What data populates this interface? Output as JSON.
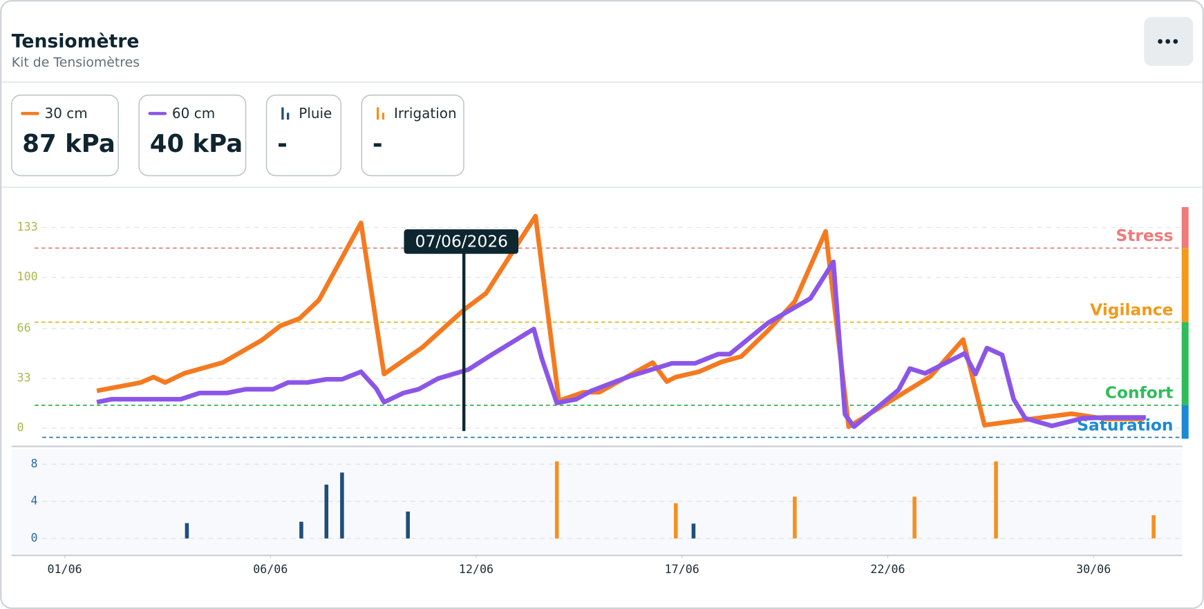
{
  "header": {
    "title": "Tensiomètre",
    "subtitle": "Kit de Tensiomètres"
  },
  "readings": [
    "87 kPa",
    "40 kPa",
    "-",
    "-"
  ],
  "chart_data": [
    {
      "type": "line",
      "xlim": [
        -1.29,
        27.16
      ],
      "ylim": [
        -7,
        146.6
      ],
      "yticks": [
        0,
        33,
        66,
        100,
        133
      ],
      "grid": true,
      "cursor": {
        "x": 9.7,
        "label": "07/06/2026"
      },
      "zones": [
        {
          "name": "Stress",
          "value": 119.4,
          "color": "#f07a7a"
        },
        {
          "name": "Vigilance",
          "value": 70.3,
          "color": "#f29a1a"
        },
        {
          "name": "Confort",
          "value": 15.2,
          "color": "#2ebd5a"
        },
        {
          "name": "Saturation",
          "value": -6.1,
          "color": "#1a8ad4"
        }
      ],
      "zone_line_colors": [
        "#d97a7a",
        "#d4b800",
        "#22aa44",
        "#1a6fa0"
      ],
      "series": [
        {
          "name": "30 cm",
          "color": "#f47a20",
          "x": [
            0.78,
            1.85,
            2.16,
            2.44,
            2.91,
            3.84,
            4.78,
            5.24,
            5.71,
            6.18,
            7.2,
            7.76,
            8.69,
            9.72,
            10.24,
            11.44,
            12.01,
            12.61,
            12.99,
            14.29,
            14.63,
            14.85,
            15.41,
            15.97,
            16.44,
            17.09,
            17.74,
            18.49,
            19.05,
            19.51,
            20.07,
            21.04,
            21.83,
            22.35,
            23.06,
            24.46,
            25.3,
            26.23
          ],
          "values": [
            24.8,
            30.3,
            33.9,
            30.3,
            36.4,
            43.5,
            58.2,
            67.8,
            72.8,
            85.0,
            136.1,
            35.9,
            53.6,
            78.9,
            89.5,
            140.6,
            18.2,
            23.8,
            23.8,
            43.5,
            30.9,
            33.9,
            37.4,
            44.0,
            47.5,
            64.7,
            84.0,
            130.5,
            1.0,
            8.6,
            18.2,
            34.4,
            58.7,
            2.0,
            4.6,
            9.6,
            6.1,
            6.1
          ]
        },
        {
          "name": "60 cm",
          "color": "#8b55e8",
          "x": [
            0.78,
            1.14,
            2.82,
            3.28,
            3.94,
            4.4,
            5.06,
            5.43,
            5.9,
            6.36,
            6.74,
            7.2,
            7.57,
            7.76,
            8.23,
            8.6,
            9.07,
            9.81,
            10.37,
            11.4,
            11.59,
            11.96,
            12.43,
            12.8,
            13.73,
            14.76,
            15.32,
            15.88,
            16.16,
            17.09,
            18.12,
            18.68,
            18.96,
            19.18,
            19.61,
            20.26,
            20.54,
            20.91,
            21.87,
            22.13,
            22.41,
            22.78,
            23.06,
            23.34,
            23.99,
            24.74,
            25.3,
            26.27
          ],
          "values": [
            17.2,
            19.2,
            19.2,
            23.3,
            23.3,
            25.8,
            25.8,
            30.3,
            30.3,
            32.4,
            32.4,
            37.4,
            26.3,
            17.2,
            23.3,
            25.8,
            32.9,
            38.9,
            48.6,
            65.8,
            46.5,
            16.7,
            19.2,
            24.8,
            34.4,
            43.0,
            43.0,
            49.1,
            49.1,
            69.8,
            86.0,
            110.3,
            9.1,
            1.0,
            10.6,
            25.3,
            39.5,
            36.4,
            49.6,
            35.9,
            53.1,
            48.6,
            19.2,
            6.6,
            1.5,
            6.6,
            7.1,
            7.1
          ]
        }
      ]
    },
    {
      "type": "bar",
      "xlim": [
        -1.29,
        27.16
      ],
      "ylim": [
        -1.65,
        9.67
      ],
      "yticks": [
        0,
        4,
        8
      ],
      "grid": true,
      "xticks": [
        {
          "value": 0,
          "label": "01/06"
        },
        {
          "value": 5,
          "label": "06/06"
        },
        {
          "value": 10,
          "label": "12/06"
        },
        {
          "value": 15,
          "label": "17/06"
        },
        {
          "value": 20,
          "label": "22/06"
        },
        {
          "value": 25,
          "label": "30/06"
        }
      ],
      "series": [
        {
          "name": "Pluie",
          "color": "#1f4e79",
          "x": [
            2.97,
            5.75,
            6.36,
            6.74,
            8.34,
            15.28
          ],
          "values": [
            1.65,
            1.8,
            5.8,
            7.1,
            2.9,
            1.6
          ]
        },
        {
          "name": "Irrigation",
          "color": "#f5901e",
          "x": [
            11.96,
            14.85,
            17.74,
            20.65,
            22.63,
            26.46
          ],
          "values": [
            8.3,
            3.8,
            4.5,
            4.5,
            8.3,
            2.5
          ]
        }
      ]
    }
  ]
}
